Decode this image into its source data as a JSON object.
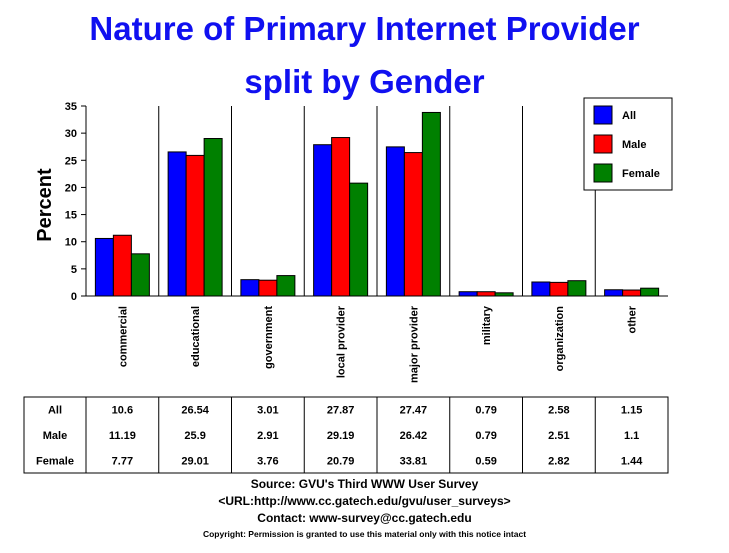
{
  "chart_data": {
    "type": "bar",
    "title": "Nature of Primary Internet Provider",
    "subtitle": "split by Gender",
    "ylabel": "Percent",
    "xlabel": "",
    "ylim": [
      0,
      35
    ],
    "yticks": [
      "0",
      "5",
      "10",
      "15",
      "20",
      "25",
      "30",
      "35"
    ],
    "grid": true,
    "legend_position": "top-right",
    "categories": [
      "commercial",
      "educational",
      "government",
      "local provider",
      "major provider",
      "military",
      "organization",
      "other"
    ],
    "series": [
      {
        "name": "All",
        "color": "#0000ff",
        "values": [
          10.6,
          26.54,
          3.01,
          27.87,
          27.47,
          0.79,
          2.58,
          1.15
        ],
        "labels": [
          "10.6",
          "26.54",
          "3.01",
          "27.87",
          "27.47",
          "0.79",
          "2.58",
          "1.15"
        ]
      },
      {
        "name": "Male",
        "color": "#ff0000",
        "values": [
          11.19,
          25.9,
          2.91,
          29.19,
          26.42,
          0.79,
          2.51,
          1.1
        ],
        "labels": [
          "11.19",
          "25.9",
          "2.91",
          "29.19",
          "26.42",
          "0.79",
          "2.51",
          "1.1"
        ]
      },
      {
        "name": "Female",
        "color": "#008000",
        "values": [
          7.77,
          29.01,
          3.76,
          20.79,
          33.81,
          0.59,
          2.82,
          1.44
        ],
        "labels": [
          "7.77",
          "29.01",
          "3.76",
          "20.79",
          "33.81",
          "0.59",
          "2.82",
          "1.44"
        ]
      }
    ]
  },
  "footer": {
    "source": "Source: GVU's Third WWW User Survey",
    "url": "<URL:http://www.cc.gatech.edu/gvu/user_surveys>",
    "contact": "Contact: www-survey@cc.gatech.edu",
    "copyright": "Copyright: Permission is granted to use this material only with this notice intact"
  }
}
